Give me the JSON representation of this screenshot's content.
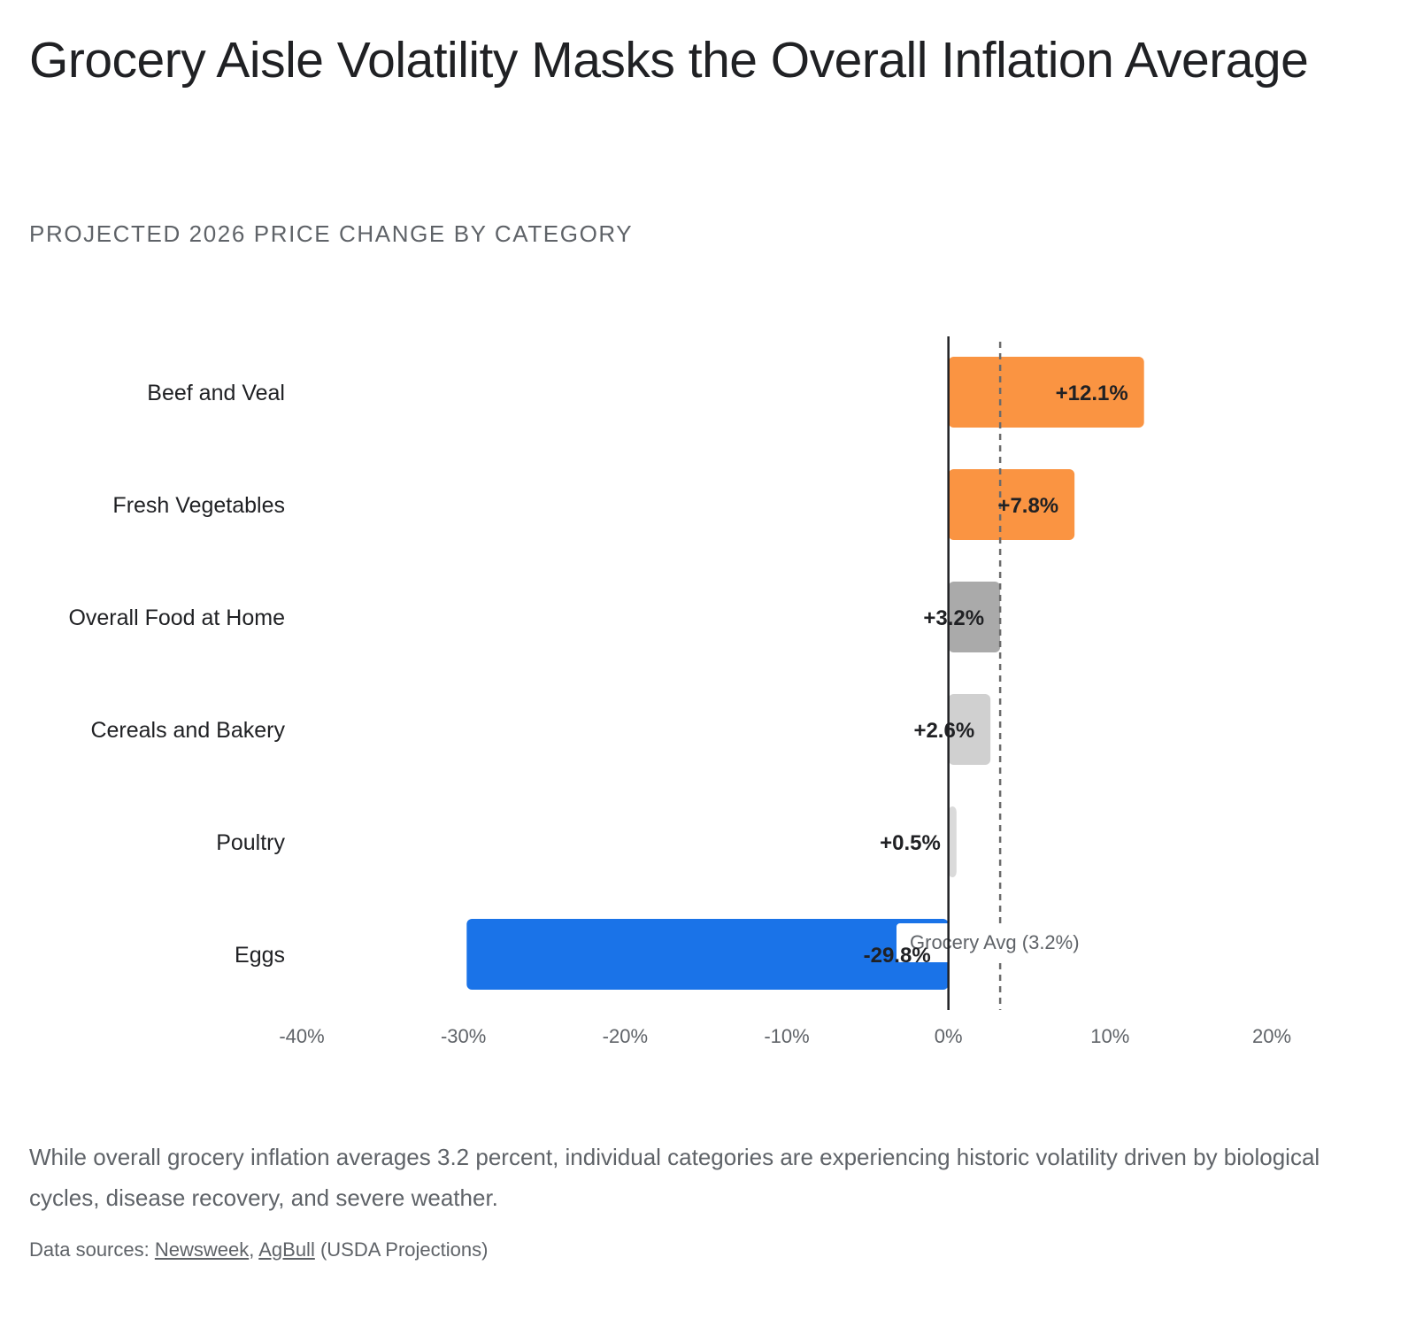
{
  "title": "Grocery Aisle Volatility Masks the Overall Inflation Average",
  "subtitle": "PROJECTED 2026 PRICE CHANGE BY CATEGORY",
  "chart_data": {
    "type": "bar",
    "orientation": "horizontal",
    "categories": [
      "Beef and Veal",
      "Fresh Vegetables",
      "Overall Food at Home",
      "Cereals and Bakery",
      "Poultry",
      "Eggs"
    ],
    "values": [
      12.1,
      7.8,
      3.2,
      2.6,
      0.5,
      -29.8
    ],
    "value_labels": [
      "+12.1%",
      "+7.8%",
      "+3.2%",
      "+2.6%",
      "+0.5%",
      "-29.8%"
    ],
    "bar_colors": [
      "#fa9442",
      "#fa9442",
      "#aaaaaa",
      "#d0d0d0",
      "#dadada",
      "#1a73e8"
    ],
    "xlim": [
      -40,
      20
    ],
    "x_ticks": [
      -40,
      -30,
      -20,
      -10,
      0,
      10,
      20
    ],
    "x_tick_labels": [
      "-40%",
      "-30%",
      "-20%",
      "-10%",
      "0%",
      "10%",
      "20%"
    ],
    "reference_line": {
      "value": 3.2,
      "label": "Grocery Avg (3.2%)",
      "style": "dashed"
    },
    "grid": false,
    "legend": "none"
  },
  "description": "While overall grocery inflation averages 3.2 percent, individual categories are experiencing historic volatility driven by biological cycles, disease recovery, and severe weather.",
  "sources": {
    "prefix": "Data sources: ",
    "links": [
      {
        "label": "Newsweek"
      },
      {
        "label": "AgBull"
      }
    ],
    "separator": ", ",
    "suffix": " (USDA Projections)"
  }
}
